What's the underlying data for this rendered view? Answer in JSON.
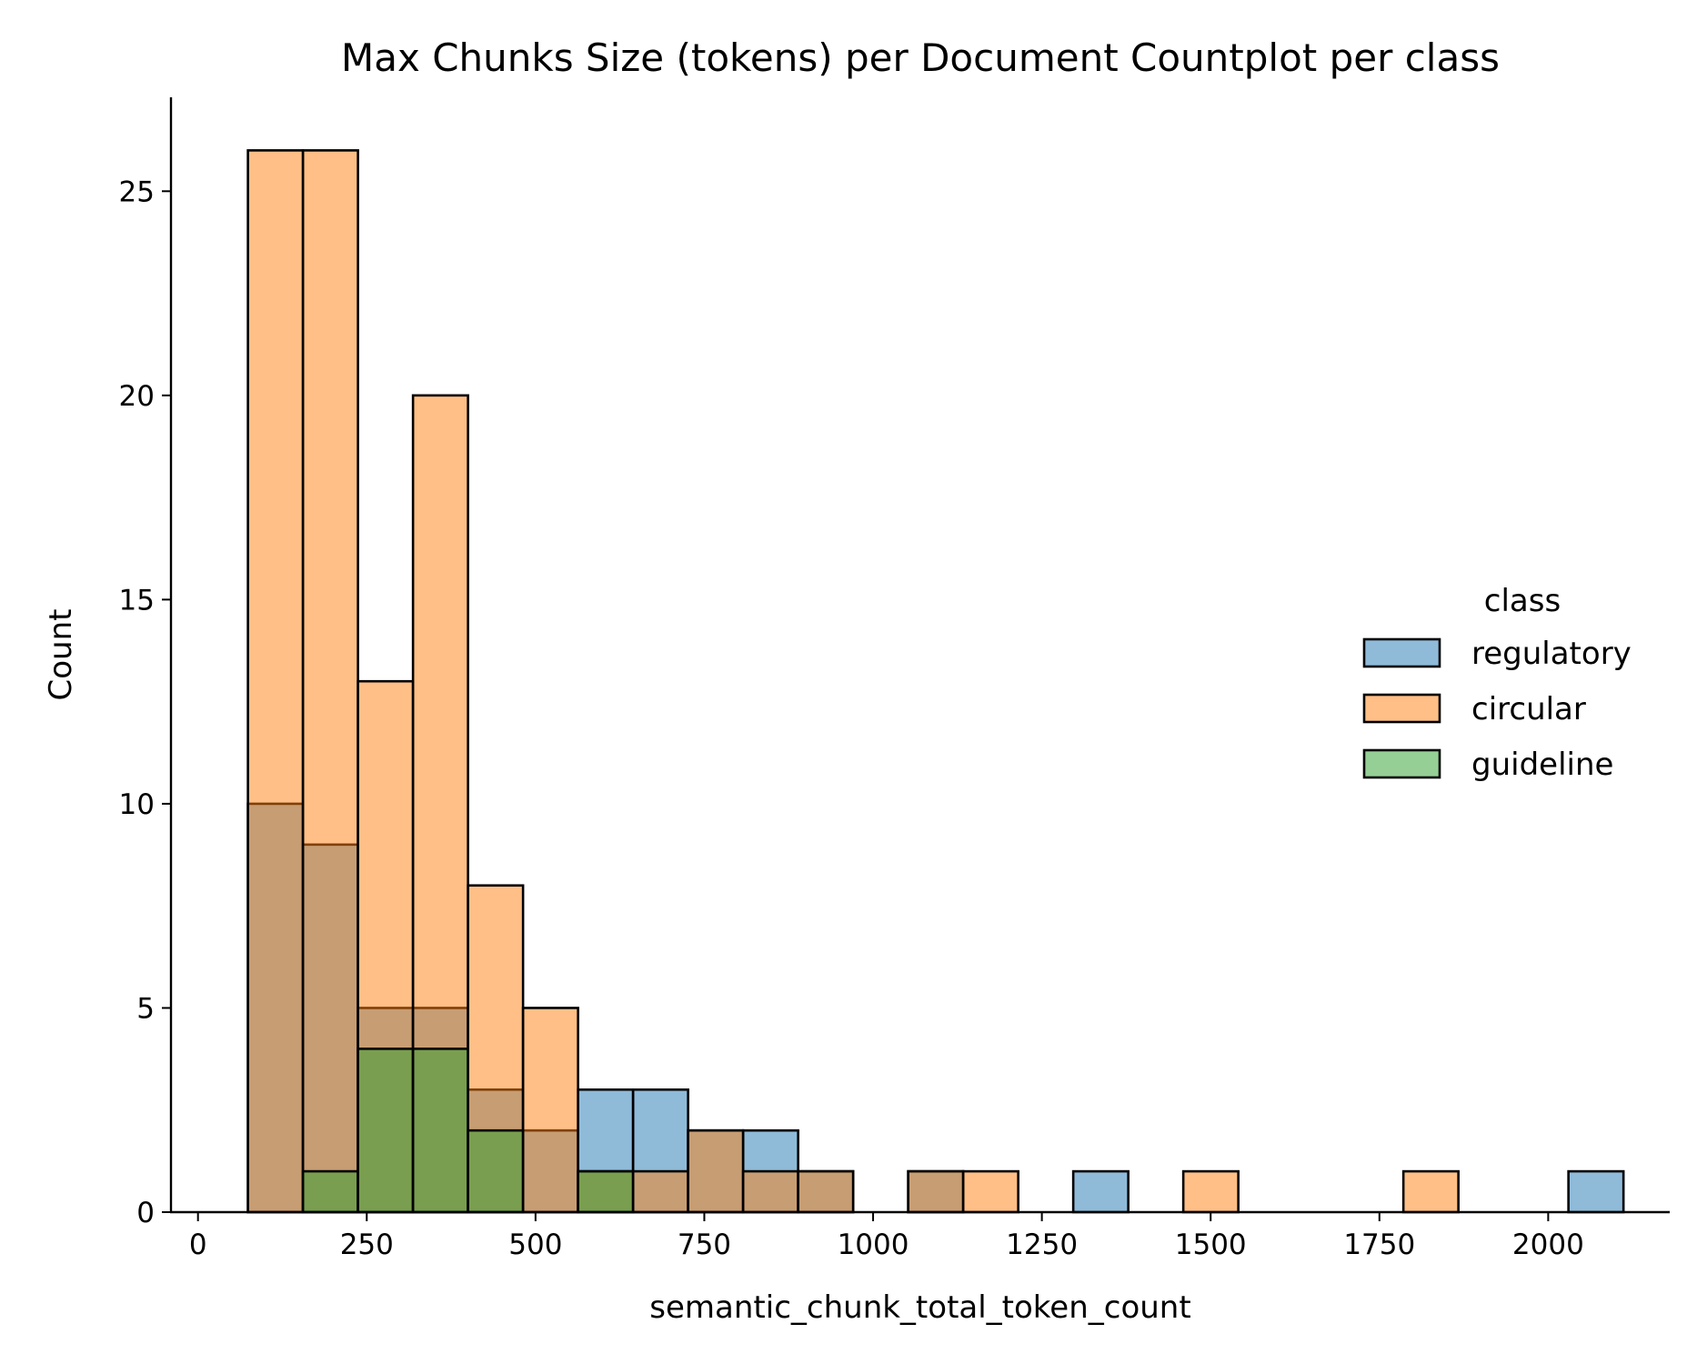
{
  "chart_data": {
    "type": "bar",
    "title": "Max Chunks Size (tokens) per Document Countplot per class",
    "xlabel": "semantic_chunk_total_token_count",
    "ylabel": "Count",
    "xlim": [
      -40,
      2180
    ],
    "ylim": [
      0,
      27.3
    ],
    "xticks": [
      0,
      250,
      500,
      750,
      1000,
      1250,
      1500,
      1750,
      2000
    ],
    "yticks": [
      0,
      5,
      10,
      15,
      20,
      25
    ],
    "grid": false,
    "legend_title": "class",
    "legend_position": "center-right",
    "bin_edges": [
      74,
      155.5,
      237,
      318.5,
      400,
      481.5,
      563,
      644.5,
      726,
      807.5,
      889,
      970.5,
      1052,
      1133.5,
      1215,
      1296.5,
      1378,
      1459.5,
      1541,
      1622.5,
      1704,
      1785.5,
      1867,
      1948.5,
      2030,
      2111.5
    ],
    "series": [
      {
        "name": "regulatory",
        "color": "#1f77b4",
        "values": [
          10,
          9,
          5,
          5,
          3,
          2,
          3,
          3,
          2,
          2,
          1,
          0,
          1,
          0,
          0,
          1,
          0,
          0,
          0,
          0,
          0,
          0,
          0,
          0,
          1
        ]
      },
      {
        "name": "circular",
        "color": "#ff7f0e",
        "values": [
          26,
          26,
          13,
          20,
          8,
          5,
          1,
          1,
          2,
          1,
          1,
          0,
          1,
          1,
          0,
          0,
          0,
          1,
          0,
          0,
          0,
          1,
          0,
          0,
          0
        ]
      },
      {
        "name": "guideline",
        "color": "#2ca02c",
        "values": [
          0,
          1,
          4,
          4,
          2,
          0,
          1,
          0,
          0,
          0,
          0,
          0,
          0,
          0,
          0,
          0,
          0,
          0,
          0,
          0,
          0,
          0,
          0,
          0,
          0
        ]
      }
    ]
  }
}
